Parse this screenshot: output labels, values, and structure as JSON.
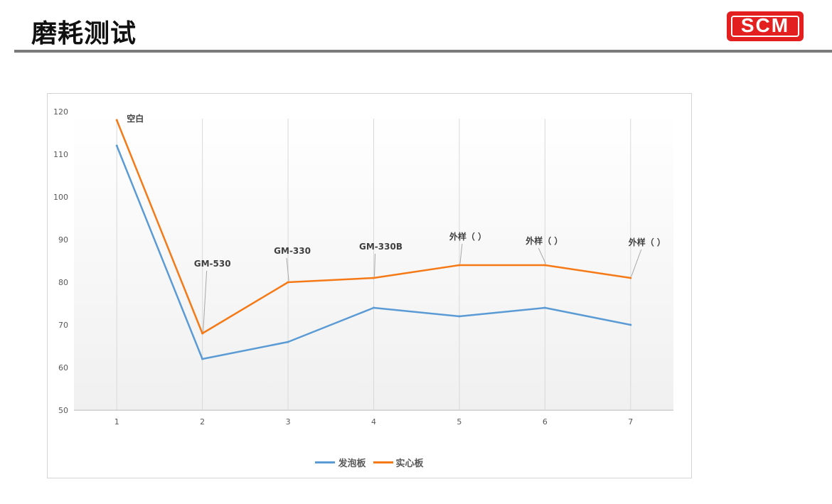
{
  "header": {
    "title": "磨耗测试",
    "logo_text": "SCM"
  },
  "colors": {
    "accent": "#e41f1f",
    "rule": "#7a7a7a",
    "series_foam": "#5b9bd5",
    "series_solid": "#f57a17"
  },
  "chart_data": {
    "type": "line",
    "title": "",
    "xlabel": "",
    "ylabel": "",
    "x": [
      "1",
      "2",
      "3",
      "4",
      "5",
      "6",
      "7"
    ],
    "ylim": [
      50,
      120
    ],
    "yticks": [
      50,
      60,
      70,
      80,
      90,
      100,
      110,
      120
    ],
    "grid": "vertical",
    "legend_position": "bottom",
    "series": [
      {
        "name": "发泡板",
        "color": "#5b9bd5",
        "values": [
          112,
          62,
          66,
          74,
          72,
          74,
          70
        ]
      },
      {
        "name": "实心板",
        "color": "#f57a17",
        "values": [
          118,
          68,
          80,
          81,
          84,
          84,
          81
        ]
      }
    ],
    "annotations": [
      {
        "x": "1",
        "y": 118,
        "text": "空白"
      },
      {
        "x": "2",
        "y": 68,
        "text": "GM-530"
      },
      {
        "x": "3",
        "y": 80,
        "text": "GM-330"
      },
      {
        "x": "4",
        "y": 81,
        "text": "GM-330B"
      },
      {
        "x": "5",
        "y": 84,
        "text": "外样（ ）"
      },
      {
        "x": "6",
        "y": 84,
        "text": "外样（ ）"
      },
      {
        "x": "7",
        "y": 81,
        "text": "外样（ ）"
      }
    ]
  }
}
